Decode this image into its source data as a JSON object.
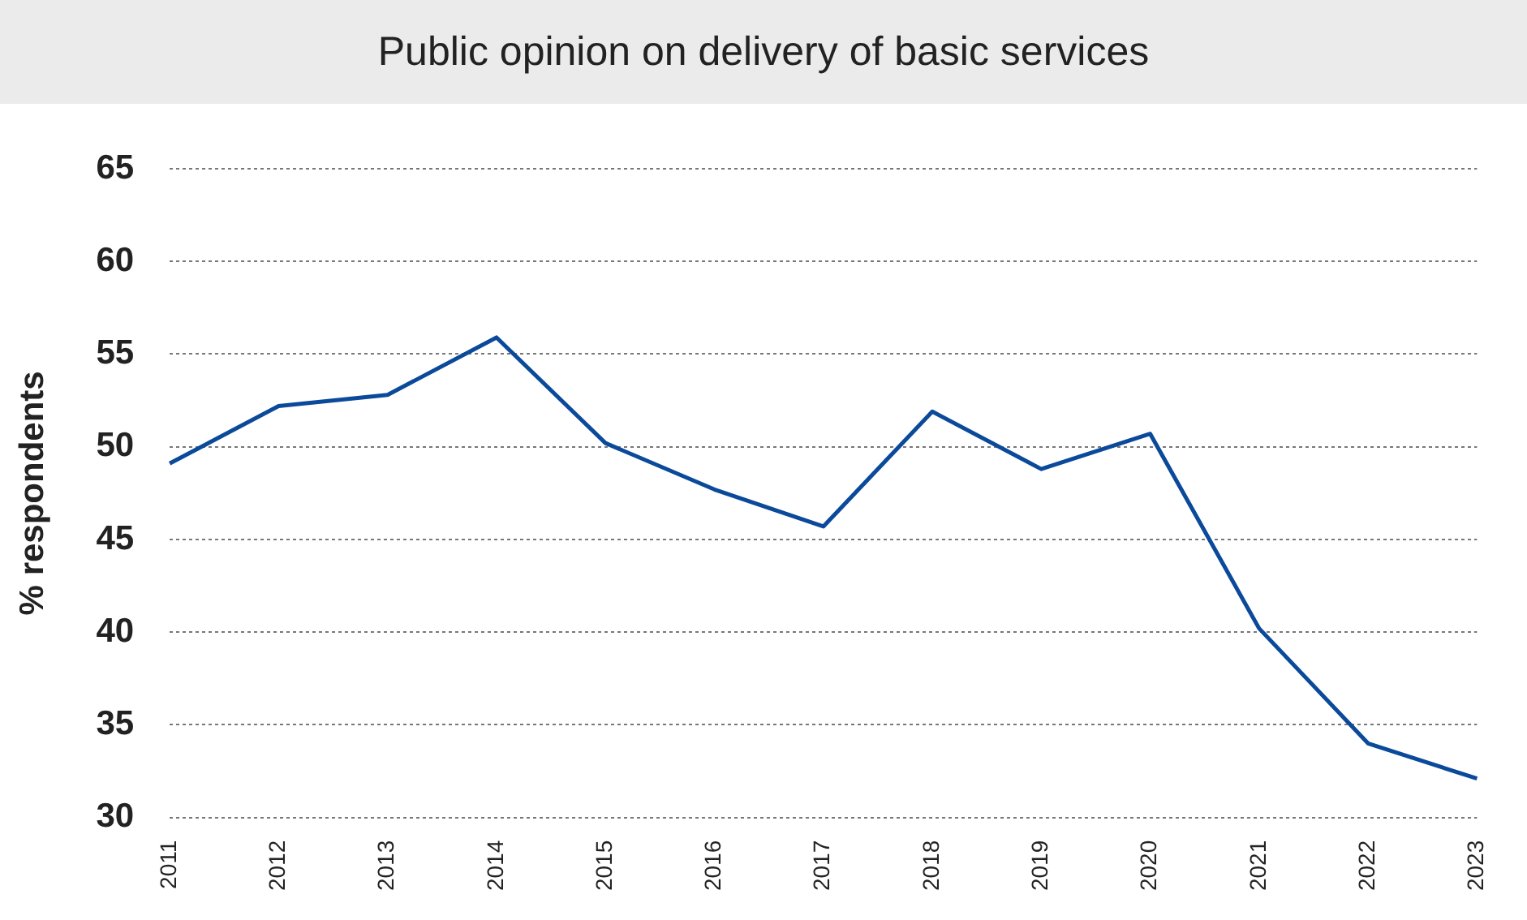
{
  "chart_data": {
    "type": "line",
    "title": "Public opinion on delivery of basic services",
    "ylabel": "% respondents",
    "categories": [
      "2011",
      "2012",
      "2013",
      "2014",
      "2015",
      "2016",
      "2017",
      "2018",
      "2019",
      "2020",
      "2021",
      "2022",
      "2023"
    ],
    "series": [
      {
        "color": "#0b4a9a",
        "values": [
          49.1,
          52.2,
          52.8,
          55.9,
          50.2,
          47.7,
          45.7,
          51.9,
          48.8,
          50.7,
          40.2,
          34.0,
          32.1
        ]
      }
    ],
    "ylim": [
      30,
      65
    ],
    "yticks": [
      30,
      35,
      40,
      45,
      50,
      55,
      60,
      65
    ],
    "grid": "y",
    "legend": false,
    "marker": "none",
    "line_style": "solid"
  }
}
